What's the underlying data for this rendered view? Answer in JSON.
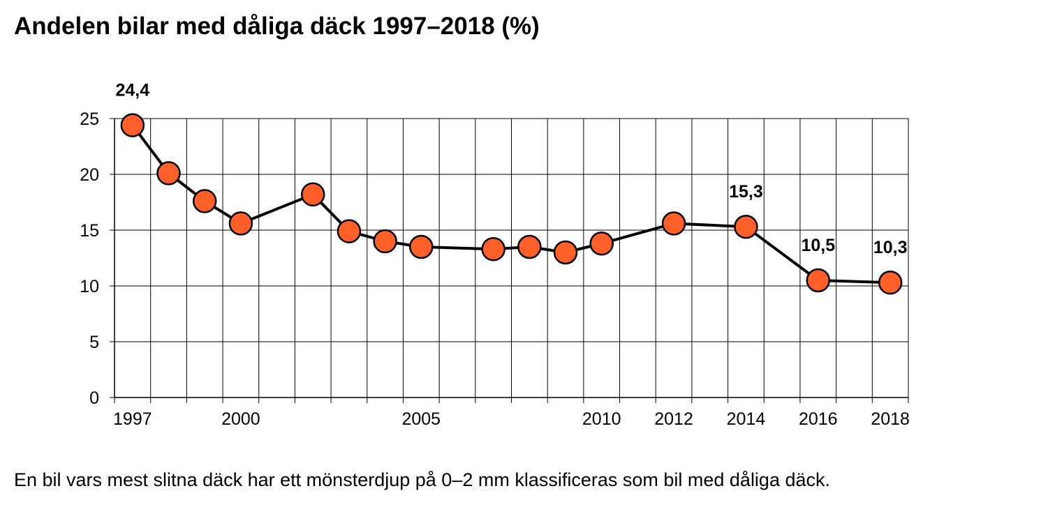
{
  "title": "Andelen bilar med dåliga däck 1997–2018 (%)",
  "footnote": "En bil vars mest slitna däck har ett mönsterdjup på 0–2 mm klassificeras som bil med dåliga däck.",
  "colors": {
    "marker": "#ff5f28",
    "line": "#000000",
    "grid": "#000000"
  },
  "chart_data": {
    "type": "line",
    "title": "Andelen bilar med dåliga däck 1997–2018 (%)",
    "xlabel": "",
    "ylabel": "",
    "xlim": [
      1997,
      2018
    ],
    "ylim": [
      0,
      25
    ],
    "yticks": [
      0,
      5,
      10,
      15,
      20,
      25
    ],
    "xticks": [
      {
        "year": 1997,
        "label": "1997"
      },
      {
        "year": 2000,
        "label": "2000"
      },
      {
        "year": 2005,
        "label": "2005"
      },
      {
        "year": 2010,
        "label": "2010"
      },
      {
        "year": 2012,
        "label": "2012"
      },
      {
        "year": 2014,
        "label": "2014"
      },
      {
        "year": 2016,
        "label": "2016"
      },
      {
        "year": 2018,
        "label": "2018"
      }
    ],
    "grid": true,
    "legend": "none",
    "points": [
      {
        "x": 1997,
        "y": 24.4
      },
      {
        "x": 1998,
        "y": 20.1
      },
      {
        "x": 1999,
        "y": 17.6
      },
      {
        "x": 2000,
        "y": 15.6
      },
      {
        "x": 2002,
        "y": 18.2
      },
      {
        "x": 2003,
        "y": 14.9
      },
      {
        "x": 2004,
        "y": 14.0
      },
      {
        "x": 2005,
        "y": 13.5
      },
      {
        "x": 2007,
        "y": 13.3
      },
      {
        "x": 2008,
        "y": 13.5
      },
      {
        "x": 2009,
        "y": 13.0
      },
      {
        "x": 2010,
        "y": 13.8
      },
      {
        "x": 2012,
        "y": 15.6
      },
      {
        "x": 2014,
        "y": 15.3
      },
      {
        "x": 2016,
        "y": 10.5
      },
      {
        "x": 2018,
        "y": 10.3
      }
    ],
    "data_labels": [
      {
        "x": 1997,
        "y": 24.4,
        "text": "24,4"
      },
      {
        "x": 2014,
        "y": 15.3,
        "text": "15,3"
      },
      {
        "x": 2016,
        "y": 10.5,
        "text": "10,5"
      },
      {
        "x": 2018,
        "y": 10.3,
        "text": "10,3"
      }
    ]
  }
}
